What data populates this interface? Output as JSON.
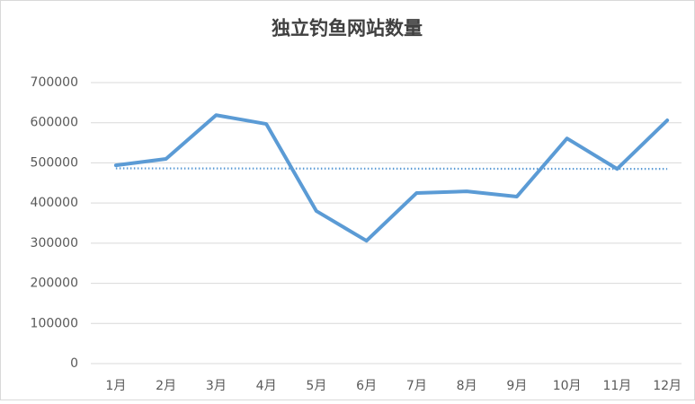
{
  "chart_data": {
    "type": "line",
    "title": "独立钓鱼网站数量",
    "categories": [
      "1月",
      "2月",
      "3月",
      "4月",
      "5月",
      "6月",
      "7月",
      "8月",
      "9月",
      "10月",
      "11月",
      "12月"
    ],
    "series": [
      {
        "color": "#5b9bd5",
        "values": [
          494000,
          510000,
          619000,
          597000,
          380000,
          306000,
          425000,
          429000,
          416000,
          561000,
          485000,
          606000
        ]
      }
    ],
    "trendline": "linear",
    "ylim": [
      0,
      700000
    ],
    "yticks": [
      0,
      100000,
      200000,
      300000,
      400000,
      500000,
      600000,
      700000
    ],
    "grid": true
  }
}
